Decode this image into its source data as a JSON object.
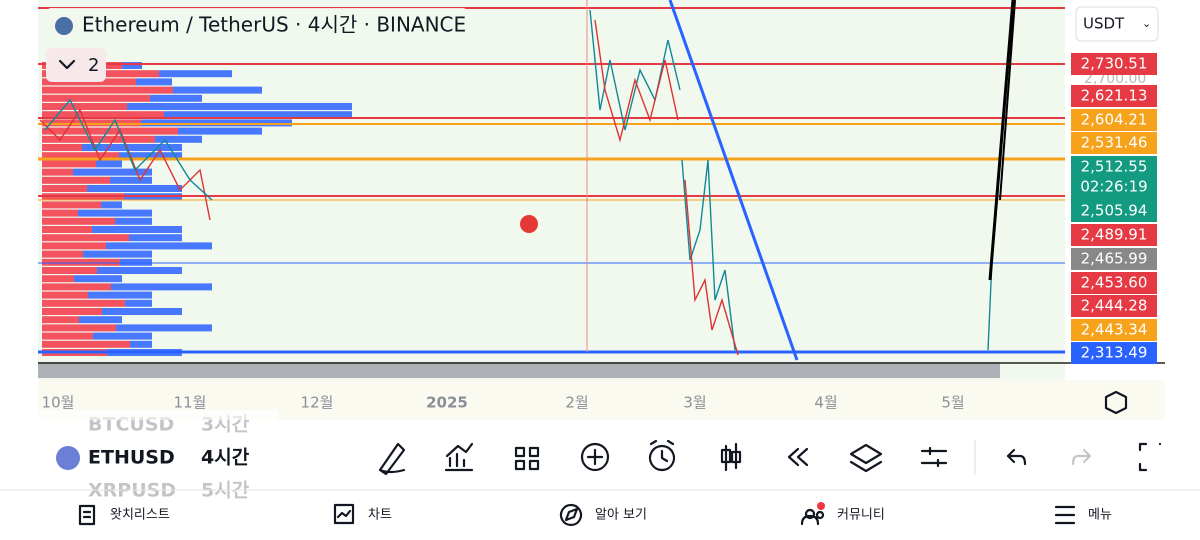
{
  "header": {
    "title": "Ethereum / TetherUS · 4시간 · BINANCE",
    "indicator_count": "2",
    "currency": "USDT"
  },
  "price_axis": {
    "faint_label": "2,700.00",
    "countdown": "02:26:19",
    "labels": [
      {
        "text": "2,730.51",
        "color": "#e53a44"
      },
      {
        "text": "2,621.13",
        "color": "#e53a44"
      },
      {
        "text": "2,604.21",
        "color": "#f7a21b"
      },
      {
        "text": "2,531.46",
        "color": "#f7a21b"
      },
      {
        "text": "2,512.55",
        "color": "#129b81"
      },
      {
        "text": "2,505.94",
        "color": "#129b81"
      },
      {
        "text": "2,489.91",
        "color": "#e53a44"
      },
      {
        "text": "2,465.99",
        "color": "#888888"
      },
      {
        "text": "2,453.60",
        "color": "#e53a44"
      },
      {
        "text": "2,444.28",
        "color": "#e53a44"
      },
      {
        "text": "2,443.34",
        "color": "#f7a21b"
      },
      {
        "text": "2,313.49",
        "color": "#2962ff"
      }
    ]
  },
  "time_axis": [
    "10월",
    "11월",
    "12월",
    "2025",
    "2월",
    "3월",
    "4월",
    "5월"
  ],
  "symbols": [
    {
      "symbol": "BTCUSD",
      "interval": "3시간"
    },
    {
      "symbol": "ETHUSD",
      "interval": "4시간"
    },
    {
      "symbol": "XRPUSD",
      "interval": "5시간"
    }
  ],
  "nav": [
    "왓치리스트",
    "차트",
    "알아 보기",
    "커뮤니티",
    "메뉴"
  ]
}
